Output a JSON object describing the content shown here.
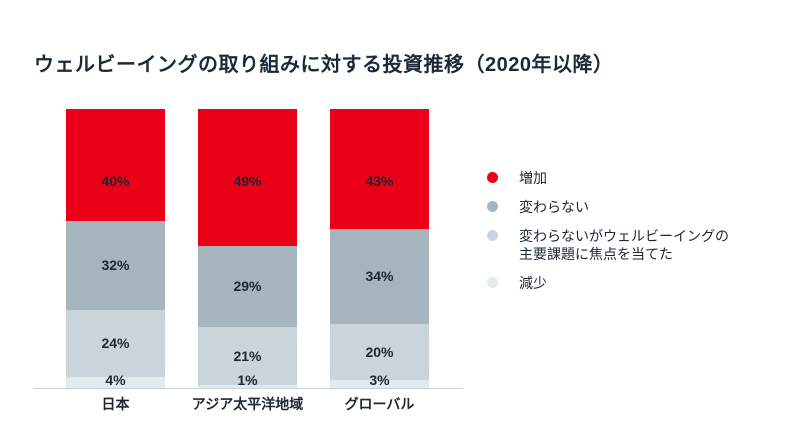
{
  "title": "ウェルビーイングの取り組みに対する投資推移（2020年以降）",
  "chart_data": {
    "type": "bar",
    "variant": "stacked-vertical-100pct",
    "categories": [
      "日本",
      "アジア太平洋地域",
      "グローバル"
    ],
    "series": [
      {
        "name": "増加",
        "color": "#EB0017",
        "values": [
          40,
          49,
          43
        ]
      },
      {
        "name": "変わらない",
        "color": "#A6B5BD",
        "values": [
          32,
          29,
          34
        ]
      },
      {
        "name": "変わらないがウェルビーイングの主要課題に焦点を当てた",
        "color": "#C9D5DA",
        "values": [
          24,
          21,
          20
        ]
      },
      {
        "name": "減少",
        "color": "#E2EAED",
        "values": [
          4,
          1,
          3
        ]
      }
    ],
    "value_format": "percent",
    "ylim": [
      0,
      100
    ],
    "grid": false,
    "legend_position": "right",
    "legend": [
      {
        "label": "増加",
        "color": "#EB0017"
      },
      {
        "label": "変わらない",
        "color": "#A6B5BD"
      },
      {
        "label": "変わらないがウェルビーイングの\n主要課題に焦点を当てた",
        "color": "#C9D5DA"
      },
      {
        "label": "減少",
        "color": "#E2EAED"
      }
    ]
  },
  "colors": {
    "background": "#FFFFFF",
    "title_text": "#1E2937",
    "label_text": "#1D2733",
    "axis_line": "#C9D2D8"
  }
}
